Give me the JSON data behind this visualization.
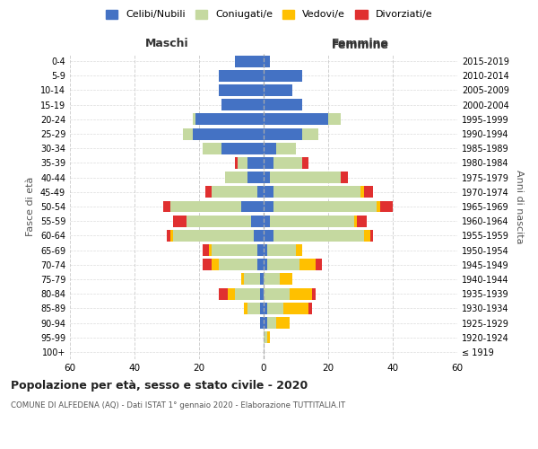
{
  "age_groups": [
    "100+",
    "95-99",
    "90-94",
    "85-89",
    "80-84",
    "75-79",
    "70-74",
    "65-69",
    "60-64",
    "55-59",
    "50-54",
    "45-49",
    "40-44",
    "35-39",
    "30-34",
    "25-29",
    "20-24",
    "15-19",
    "10-14",
    "5-9",
    "0-4"
  ],
  "birth_years": [
    "≤ 1919",
    "1920-1924",
    "1925-1929",
    "1930-1934",
    "1935-1939",
    "1940-1944",
    "1945-1949",
    "1950-1954",
    "1955-1959",
    "1960-1964",
    "1965-1969",
    "1970-1974",
    "1975-1979",
    "1980-1984",
    "1985-1989",
    "1990-1994",
    "1995-1999",
    "2000-2004",
    "2005-2009",
    "2010-2014",
    "2015-2019"
  ],
  "males": {
    "celibi": [
      0,
      0,
      1,
      1,
      1,
      1,
      2,
      2,
      3,
      4,
      7,
      2,
      5,
      5,
      13,
      22,
      21,
      13,
      14,
      14,
      9
    ],
    "coniugati": [
      0,
      0,
      0,
      4,
      8,
      5,
      12,
      14,
      25,
      20,
      22,
      14,
      7,
      3,
      6,
      3,
      1,
      0,
      0,
      0,
      0
    ],
    "vedovi": [
      0,
      0,
      0,
      1,
      2,
      1,
      2,
      1,
      1,
      0,
      0,
      0,
      0,
      0,
      0,
      0,
      0,
      0,
      0,
      0,
      0
    ],
    "divorziati": [
      0,
      0,
      0,
      0,
      3,
      0,
      3,
      2,
      1,
      4,
      2,
      2,
      0,
      1,
      0,
      0,
      0,
      0,
      0,
      0,
      0
    ]
  },
  "females": {
    "nubili": [
      0,
      0,
      1,
      1,
      0,
      0,
      1,
      1,
      3,
      2,
      3,
      3,
      2,
      3,
      4,
      12,
      20,
      12,
      9,
      12,
      2
    ],
    "coniugate": [
      0,
      1,
      3,
      5,
      8,
      5,
      10,
      9,
      28,
      26,
      32,
      27,
      22,
      9,
      6,
      5,
      4,
      0,
      0,
      0,
      0
    ],
    "vedove": [
      0,
      1,
      4,
      8,
      7,
      4,
      5,
      2,
      2,
      1,
      1,
      1,
      0,
      0,
      0,
      0,
      0,
      0,
      0,
      0,
      0
    ],
    "divorziate": [
      0,
      0,
      0,
      1,
      1,
      0,
      2,
      0,
      1,
      3,
      4,
      3,
      2,
      2,
      0,
      0,
      0,
      0,
      0,
      0,
      0
    ]
  },
  "colors": {
    "celibi": "#4472c4",
    "coniugati": "#c5d9a0",
    "vedovi": "#ffc000",
    "divorziati": "#e03030"
  },
  "title": "Popolazione per età, sesso e stato civile - 2020",
  "subtitle": "COMUNE DI ALFEDENA (AQ) - Dati ISTAT 1° gennaio 2020 - Elaborazione TUTTITALIA.IT",
  "xlabel_left": "Maschi",
  "xlabel_right": "Femmine",
  "ylabel_left": "Fasce di età",
  "ylabel_right": "Anni di nascita",
  "legend_labels": [
    "Celibi/Nubili",
    "Coniugati/e",
    "Vedovi/e",
    "Divorziati/e"
  ],
  "xlim": 60,
  "background_color": "#ffffff"
}
